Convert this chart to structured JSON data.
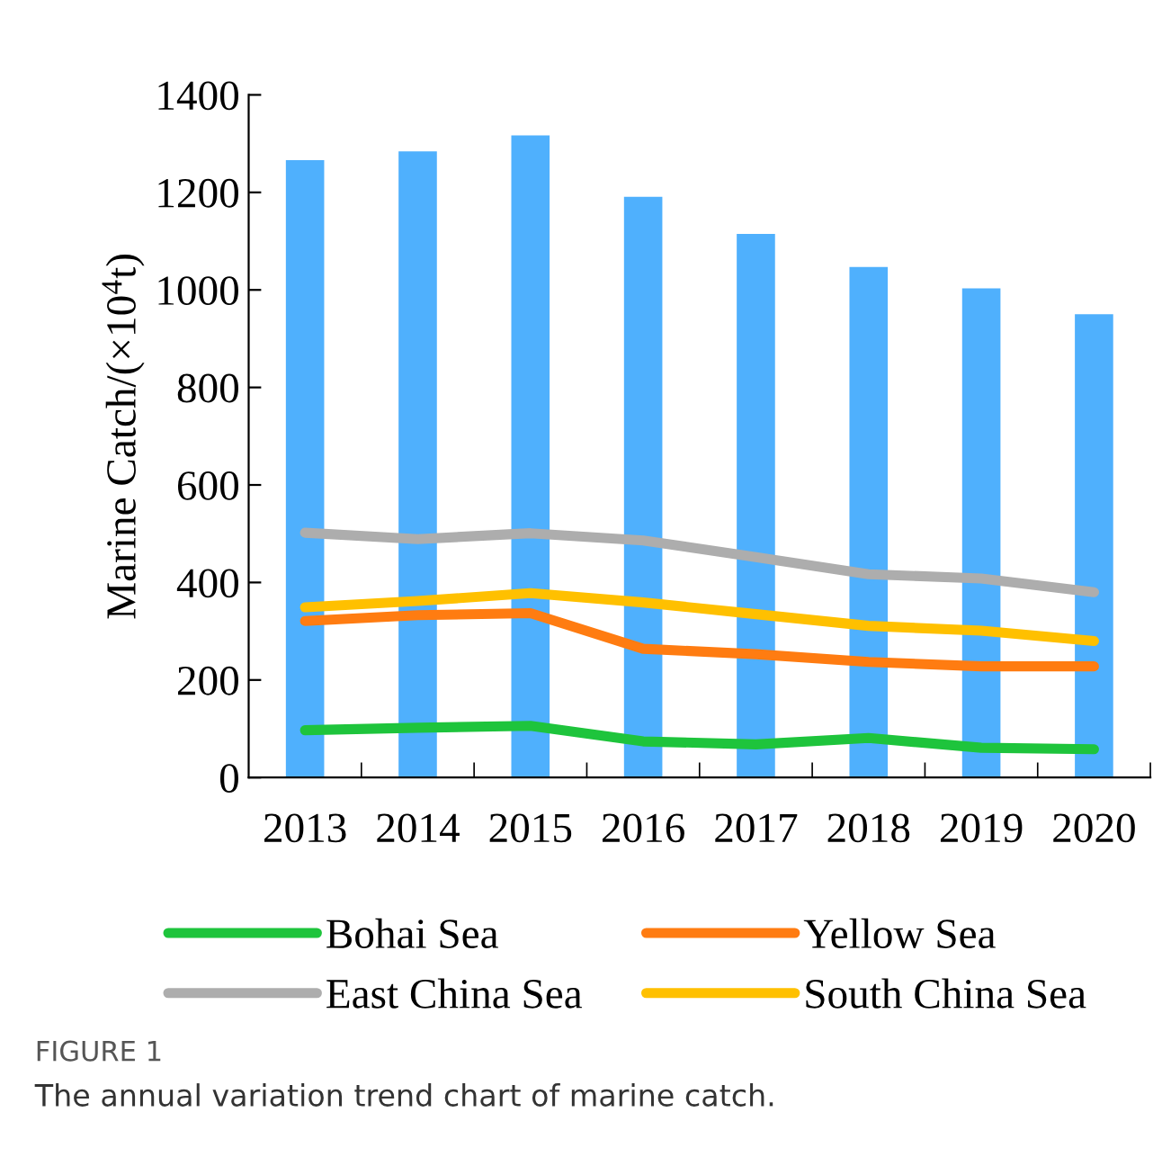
{
  "chart_data": {
    "type": "bar",
    "ylabel": "Marine Catch/(×10$^{4}$t)",
    "categories": [
      "2013",
      "2014",
      "2015",
      "2016",
      "2017",
      "2018",
      "2019",
      "2020"
    ],
    "series": [
      {
        "color": "#4fb0fd",
        "values": [
          1266,
          1284,
          1317,
          1191,
          1115,
          1047,
          1003,
          950
        ]
      },
      {
        "type": "line",
        "name": "Bohai Sea",
        "color": "#1ec43c",
        "values": [
          97,
          102,
          106,
          74,
          68,
          81,
          61,
          58
        ]
      },
      {
        "type": "line",
        "name": "Yellow Sea",
        "color": "#ff7c11",
        "values": [
          321,
          333,
          337,
          264,
          253,
          237,
          228,
          228
        ]
      },
      {
        "type": "line",
        "name": "East China Sea",
        "color": "#adadad",
        "values": [
          502,
          489,
          501,
          486,
          452,
          417,
          408,
          380
        ]
      },
      {
        "type": "line",
        "name": "South China Sea",
        "color": "#ffc000",
        "values": [
          349,
          362,
          378,
          359,
          335,
          311,
          301,
          280
        ]
      }
    ],
    "ylim": [
      0,
      1400
    ],
    "yticks": [
      0,
      200,
      400,
      600,
      800,
      1000,
      1200,
      1400
    ],
    "grid": false,
    "legend": "bottom",
    "marker": "none",
    "line_style": "solid",
    "annotations": [
      "FIGURE 1",
      "The annual variation trend chart of marine catch."
    ]
  }
}
